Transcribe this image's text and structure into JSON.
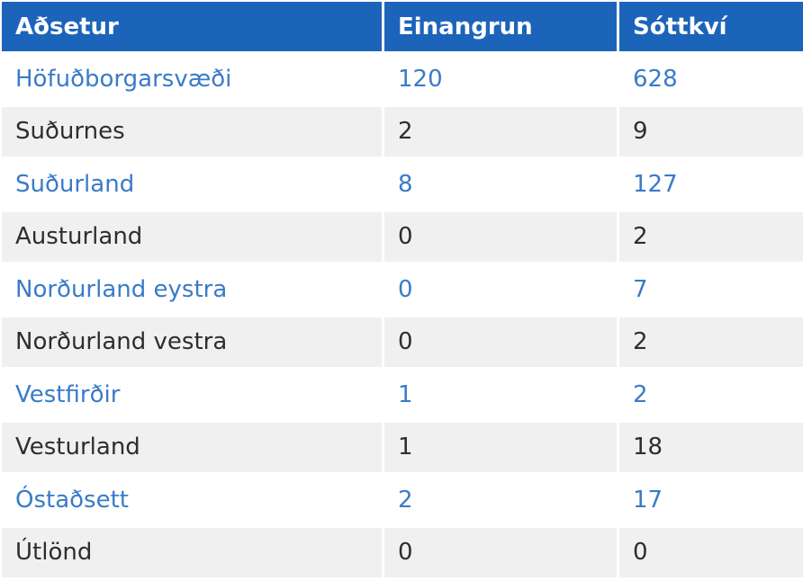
{
  "table": {
    "headers": [
      "Aðsetur",
      "Einangrun",
      "Sóttkví"
    ],
    "rows": [
      [
        "Höfuðborgarsvæði",
        "120",
        "628"
      ],
      [
        "Suðurnes",
        "2",
        "9"
      ],
      [
        "Suðurland",
        "8",
        "127"
      ],
      [
        "Austurland",
        "0",
        "2"
      ],
      [
        "Norðurland eystra",
        "0",
        "7"
      ],
      [
        "Norðurland vestra",
        "0",
        "2"
      ],
      [
        "Vestfirðir",
        "1",
        "2"
      ],
      [
        "Vesturland",
        "1",
        "18"
      ],
      [
        "Óstaðsett",
        "2",
        "17"
      ],
      [
        "Útlönd",
        "0",
        "0"
      ]
    ]
  },
  "colors": {
    "header_bg": "#1c64ba",
    "header_text": "#ffffff",
    "accent_row_text": "#3a7bc8",
    "plain_row_text": "#2e2e2e",
    "alt_row_bg": "#f0f0f0"
  }
}
